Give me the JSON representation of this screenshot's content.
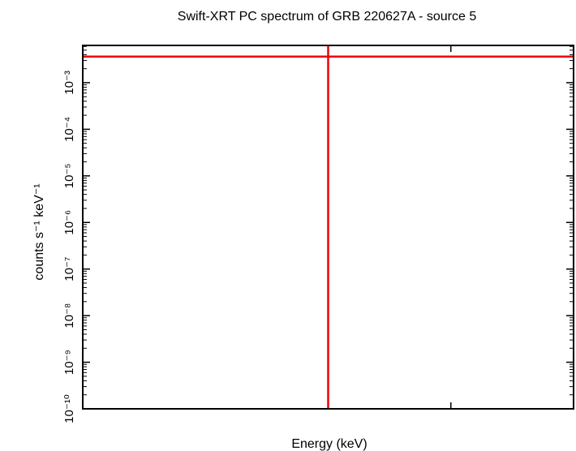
{
  "chart_data": {
    "type": "scatter",
    "title": "Swift-XRT PC spectrum of GRB 220627A - source 5",
    "xlabel": "Energy (keV)",
    "ylabel": "counts s⁻¹ keV⁻¹",
    "yscale": "log",
    "ylim_exponents": [
      -10,
      -2.2
    ],
    "y_tick_exponents": [
      -10,
      -9,
      -8,
      -7,
      -6,
      -5,
      -4,
      -3
    ],
    "y_tick_labels": [
      "10⁻¹⁰",
      "10⁻⁹",
      "10⁻⁸",
      "10⁻⁷",
      "10⁻⁶",
      "10⁻⁵",
      "10⁻⁴",
      "10⁻³"
    ],
    "x_tick_labels": [],
    "grid": false,
    "legend": "none",
    "series": [
      {
        "color": "#ee0000",
        "points": [
          {
            "x_fraction": 0.5,
            "y_exponent": -2.44,
            "x_err_fraction": [
              0.0,
              1.0
            ],
            "y_err_exponent": [
              -10,
              -2.2
            ]
          }
        ]
      }
    ]
  }
}
